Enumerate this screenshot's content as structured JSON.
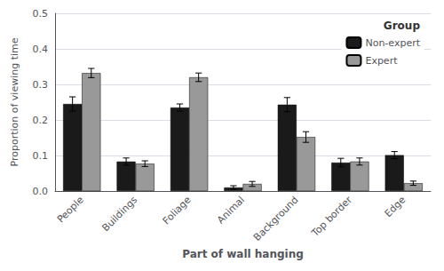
{
  "chart_data": {
    "type": "bar",
    "xlabel": "Part of wall hanging",
    "ylabel": "Proportion of viewing time",
    "categories": [
      "People",
      "Buildings",
      "Foliage",
      "Animal",
      "Background",
      "Top border",
      "Edge"
    ],
    "series": [
      {
        "name": "Non-expert",
        "color": "#1a1a1a",
        "values": [
          0.245,
          0.083,
          0.235,
          0.01,
          0.243,
          0.08,
          0.101
        ],
        "errors": [
          0.02,
          0.01,
          0.01,
          0.005,
          0.02,
          0.012,
          0.01
        ]
      },
      {
        "name": "Expert",
        "color": "#999999",
        "values": [
          0.332,
          0.077,
          0.32,
          0.02,
          0.152,
          0.083,
          0.022
        ],
        "errors": [
          0.013,
          0.008,
          0.012,
          0.007,
          0.015,
          0.01,
          0.006
        ]
      }
    ],
    "ylim": [
      0,
      0.5
    ],
    "yticks": [
      {
        "value": 0,
        "label": "0.0"
      },
      0.1,
      0.2,
      0.3,
      0.4,
      0.5
    ],
    "grid": true,
    "legend": "upper right",
    "legend_title": "Group"
  }
}
